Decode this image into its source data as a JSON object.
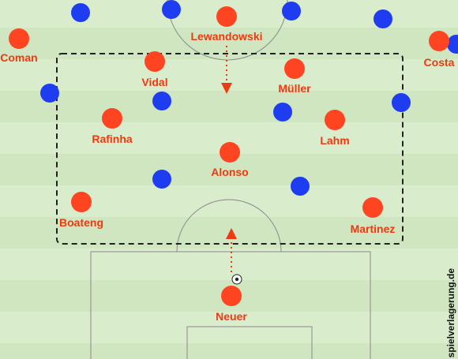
{
  "pitch": {
    "stripe_light": "#d9eccc",
    "stripe_dark": "#cfe6c0",
    "line_color": "#8a8a8a",
    "home_color": "#ff4422",
    "away_color": "#1f3df0",
    "label_color": "#ee3a10"
  },
  "watermark": "spielverlagerung.de",
  "home_players": [
    {
      "id": "lewandowski",
      "name": "Lewandowski"
    },
    {
      "id": "coman",
      "name": "Coman"
    },
    {
      "id": "costa",
      "name": "Costa"
    },
    {
      "id": "vidal",
      "name": "Vidal"
    },
    {
      "id": "muller",
      "name": "Müller"
    },
    {
      "id": "rafinha",
      "name": "Rafinha"
    },
    {
      "id": "lahm",
      "name": "Lahm"
    },
    {
      "id": "alonso",
      "name": "Alonso"
    },
    {
      "id": "boateng",
      "name": "Boateng"
    },
    {
      "id": "martinez",
      "name": "Martinez"
    },
    {
      "id": "neuer",
      "name": "Neuer"
    }
  ],
  "away_player_count": 11
}
